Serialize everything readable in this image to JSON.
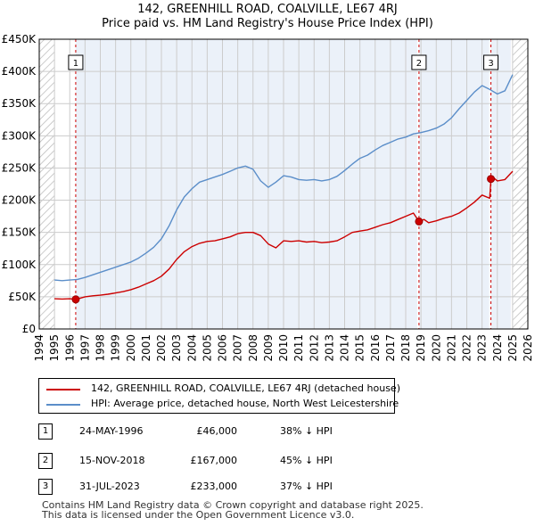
{
  "title_line1": "142, GREENHILL ROAD, COALVILLE, LE67 4RJ",
  "title_line2": "Price paid vs. HM Land Registry's House Price Index (HPI)",
  "colors": {
    "property": "#cc0000",
    "hpi": "#5b8ec9",
    "shade": "#dde8f5",
    "marker_line": "#cc0000",
    "grid": "#cccccc"
  },
  "chart_data": {
    "type": "line",
    "xlim": [
      1994,
      2026
    ],
    "ylim": [
      0,
      450000
    ],
    "x_ticks": [
      1994,
      1995,
      1996,
      1997,
      1998,
      1999,
      2000,
      2001,
      2002,
      2003,
      2004,
      2005,
      2006,
      2007,
      2008,
      2009,
      2010,
      2011,
      2012,
      2013,
      2014,
      2015,
      2016,
      2017,
      2018,
      2019,
      2020,
      2021,
      2022,
      2023,
      2024,
      2025,
      2026
    ],
    "y_ticks": [
      0,
      50000,
      100000,
      150000,
      200000,
      250000,
      300000,
      350000,
      400000,
      450000
    ],
    "y_tick_labels": [
      "£0",
      "£50K",
      "£100K",
      "£150K",
      "£200K",
      "£250K",
      "£300K",
      "£350K",
      "£400K",
      "£450K"
    ],
    "hatched_ranges": [
      [
        1994,
        1995
      ],
      [
        2025,
        2026
      ]
    ],
    "series": [
      {
        "name": "142, GREENHILL ROAD, COALVILLE, LE67 4RJ (detached house)",
        "color": "#cc0000",
        "x": [
          1995.0,
          1995.5,
          1996.0,
          1996.4,
          1997.0,
          1997.5,
          1998.0,
          1998.5,
          1999.0,
          1999.5,
          2000.0,
          2000.5,
          2001.0,
          2001.5,
          2002.0,
          2002.5,
          2003.0,
          2003.5,
          2004.0,
          2004.5,
          2005.0,
          2005.5,
          2006.0,
          2006.5,
          2007.0,
          2007.5,
          2008.0,
          2008.5,
          2009.0,
          2009.5,
          2010.0,
          2010.5,
          2011.0,
          2011.5,
          2012.0,
          2012.5,
          2013.0,
          2013.5,
          2014.0,
          2014.5,
          2015.0,
          2015.5,
          2016.0,
          2016.5,
          2017.0,
          2017.5,
          2018.0,
          2018.5,
          2018.87,
          2019.2,
          2019.5,
          2020.0,
          2020.5,
          2021.0,
          2021.5,
          2022.0,
          2022.5,
          2023.0,
          2023.5,
          2023.58,
          2023.7,
          2024.0,
          2024.5,
          2025.0
        ],
        "values": [
          47000,
          46500,
          47000,
          46000,
          50000,
          51500,
          52500,
          54000,
          56000,
          58000,
          61000,
          65000,
          70000,
          75000,
          82000,
          93000,
          108000,
          120000,
          128000,
          133000,
          136000,
          137000,
          140000,
          143000,
          148000,
          150000,
          150000,
          145000,
          132000,
          126000,
          137000,
          136000,
          137000,
          135000,
          136000,
          134000,
          135000,
          137000,
          143000,
          150000,
          152000,
          154000,
          158000,
          162000,
          165000,
          170000,
          175000,
          180000,
          167000,
          170000,
          165000,
          168000,
          172000,
          175000,
          180000,
          188000,
          197000,
          208000,
          203000,
          233000,
          236000,
          230000,
          232000,
          245000
        ]
      },
      {
        "name": "HPI: Average price, detached house, North West Leicestershire",
        "color": "#5b8ec9",
        "x": [
          1995.0,
          1995.5,
          1996.0,
          1996.5,
          1997.0,
          1997.5,
          1998.0,
          1998.5,
          1999.0,
          1999.5,
          2000.0,
          2000.5,
          2001.0,
          2001.5,
          2002.0,
          2002.5,
          2003.0,
          2003.5,
          2004.0,
          2004.5,
          2005.0,
          2005.5,
          2006.0,
          2006.5,
          2007.0,
          2007.5,
          2008.0,
          2008.5,
          2009.0,
          2009.5,
          2010.0,
          2010.5,
          2011.0,
          2011.5,
          2012.0,
          2012.5,
          2013.0,
          2013.5,
          2014.0,
          2014.5,
          2015.0,
          2015.5,
          2016.0,
          2016.5,
          2017.0,
          2017.5,
          2018.0,
          2018.5,
          2019.0,
          2019.5,
          2020.0,
          2020.5,
          2021.0,
          2021.5,
          2022.0,
          2022.5,
          2023.0,
          2023.5,
          2024.0,
          2024.5,
          2025.0
        ],
        "values": [
          76000,
          75000,
          76000,
          77000,
          80000,
          84000,
          88000,
          92000,
          96000,
          100000,
          104000,
          110000,
          118000,
          127000,
          140000,
          160000,
          185000,
          205000,
          218000,
          228000,
          232000,
          236000,
          240000,
          245000,
          250000,
          253000,
          248000,
          230000,
          220000,
          228000,
          238000,
          236000,
          232000,
          231000,
          232000,
          230000,
          232000,
          237000,
          246000,
          256000,
          265000,
          270000,
          278000,
          285000,
          290000,
          295000,
          298000,
          303000,
          305000,
          308000,
          312000,
          318000,
          328000,
          342000,
          355000,
          368000,
          378000,
          372000,
          365000,
          370000,
          395000
        ]
      }
    ],
    "sale_markers": [
      {
        "label": "1",
        "x": 1996.39,
        "value": 46000
      },
      {
        "label": "2",
        "x": 2018.87,
        "value": 167000
      },
      {
        "label": "3",
        "x": 2023.58,
        "value": 233000
      }
    ]
  },
  "legend": {
    "property_label": "142, GREENHILL ROAD, COALVILLE, LE67 4RJ (detached house)",
    "hpi_label": "HPI: Average price, detached house, North West Leicestershire"
  },
  "transactions": [
    {
      "num": "1",
      "date": "24-MAY-1996",
      "price": "£46,000",
      "hpi": "38% ↓ HPI"
    },
    {
      "num": "2",
      "date": "15-NOV-2018",
      "price": "£167,000",
      "hpi": "45% ↓ HPI"
    },
    {
      "num": "3",
      "date": "31-JUL-2023",
      "price": "£233,000",
      "hpi": "37% ↓ HPI"
    }
  ],
  "footer": {
    "line1": "Contains HM Land Registry data © Crown copyright and database right 2025.",
    "line2": "This data is licensed under the Open Government Licence v3.0."
  }
}
